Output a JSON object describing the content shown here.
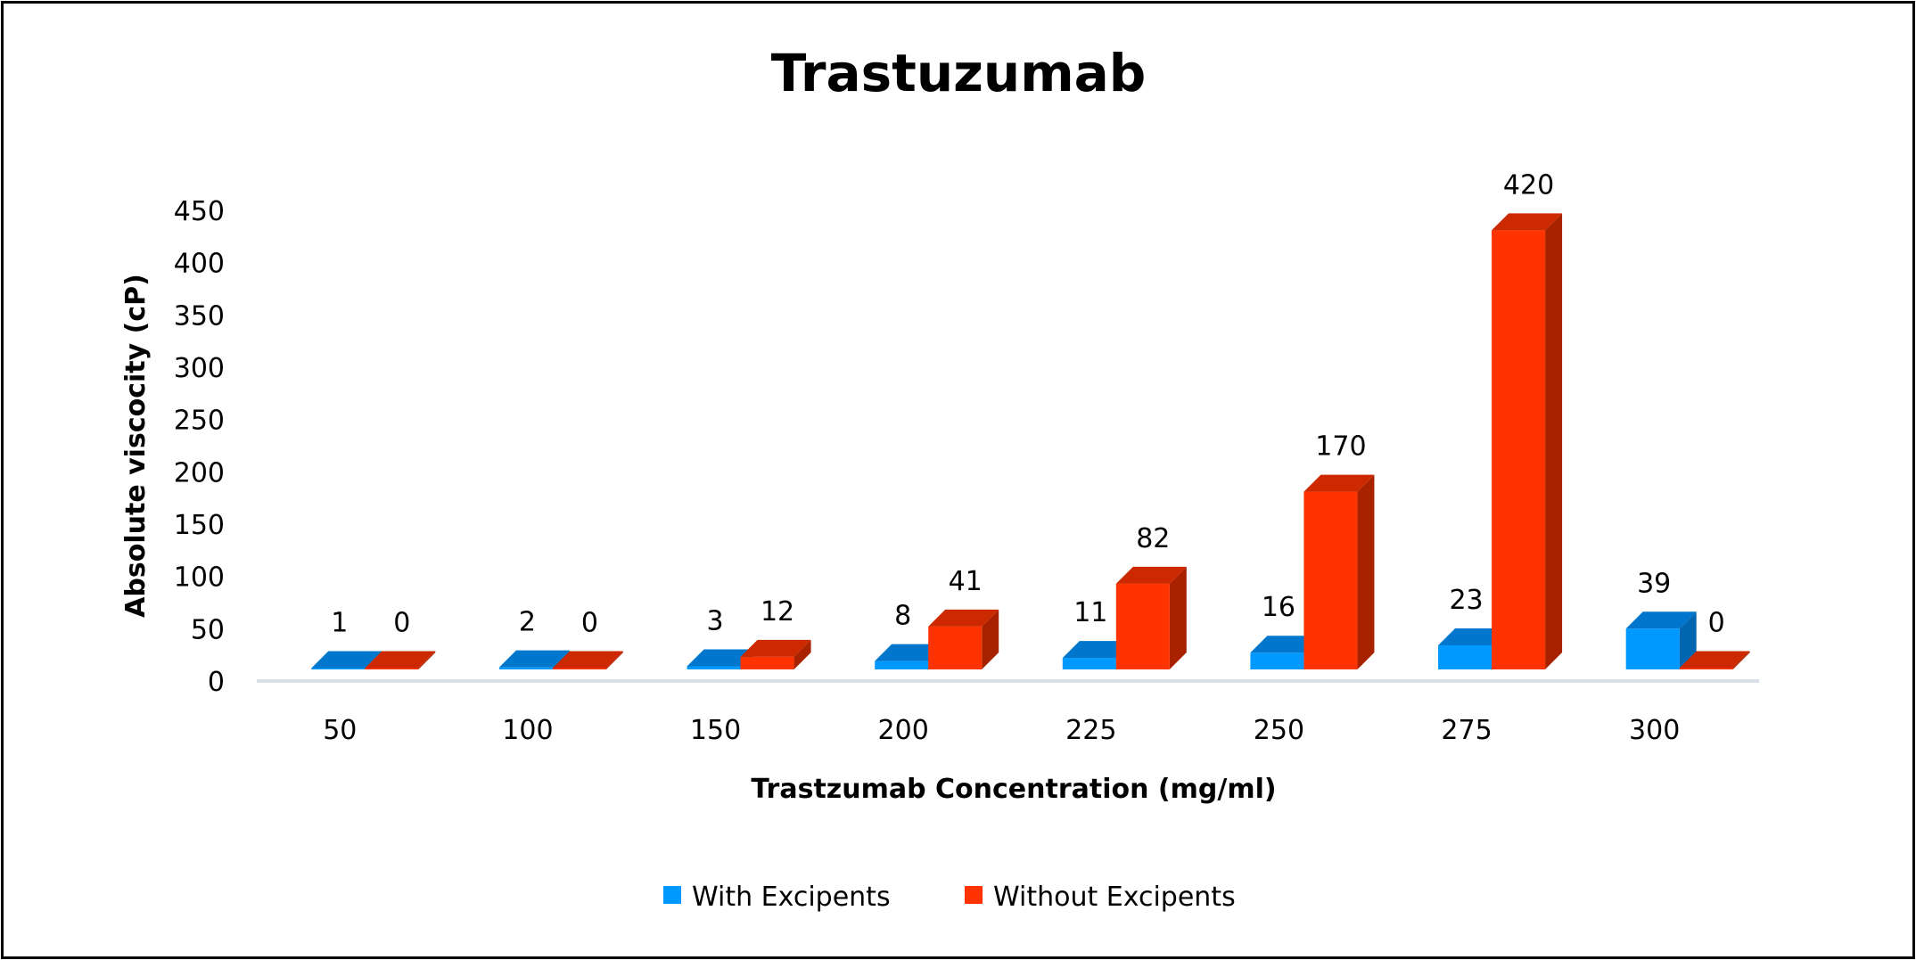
{
  "chart_data": {
    "type": "bar",
    "title": "Trastuzumab",
    "xlabel": "Trastzumab Concentration  (mg/ml)",
    "ylabel": "Absolute viscocity (cP)",
    "categories": [
      "50",
      "100",
      "150",
      "200",
      "225",
      "250",
      "275",
      "300"
    ],
    "series": [
      {
        "name": "With Excipents",
        "color": "#0099FF",
        "values": [
          1,
          2,
          3,
          8,
          11,
          16,
          23,
          39
        ]
      },
      {
        "name": "Without Excipents",
        "color": "#FF3300",
        "values": [
          0,
          0,
          12,
          41,
          82,
          170,
          420,
          0
        ]
      }
    ],
    "ylim": [
      0,
      450
    ],
    "yticks": [
      0,
      50,
      100,
      150,
      200,
      250,
      300,
      350,
      400,
      450
    ],
    "grid": false,
    "legend": "bottom",
    "style": "3d-clustered-column"
  }
}
